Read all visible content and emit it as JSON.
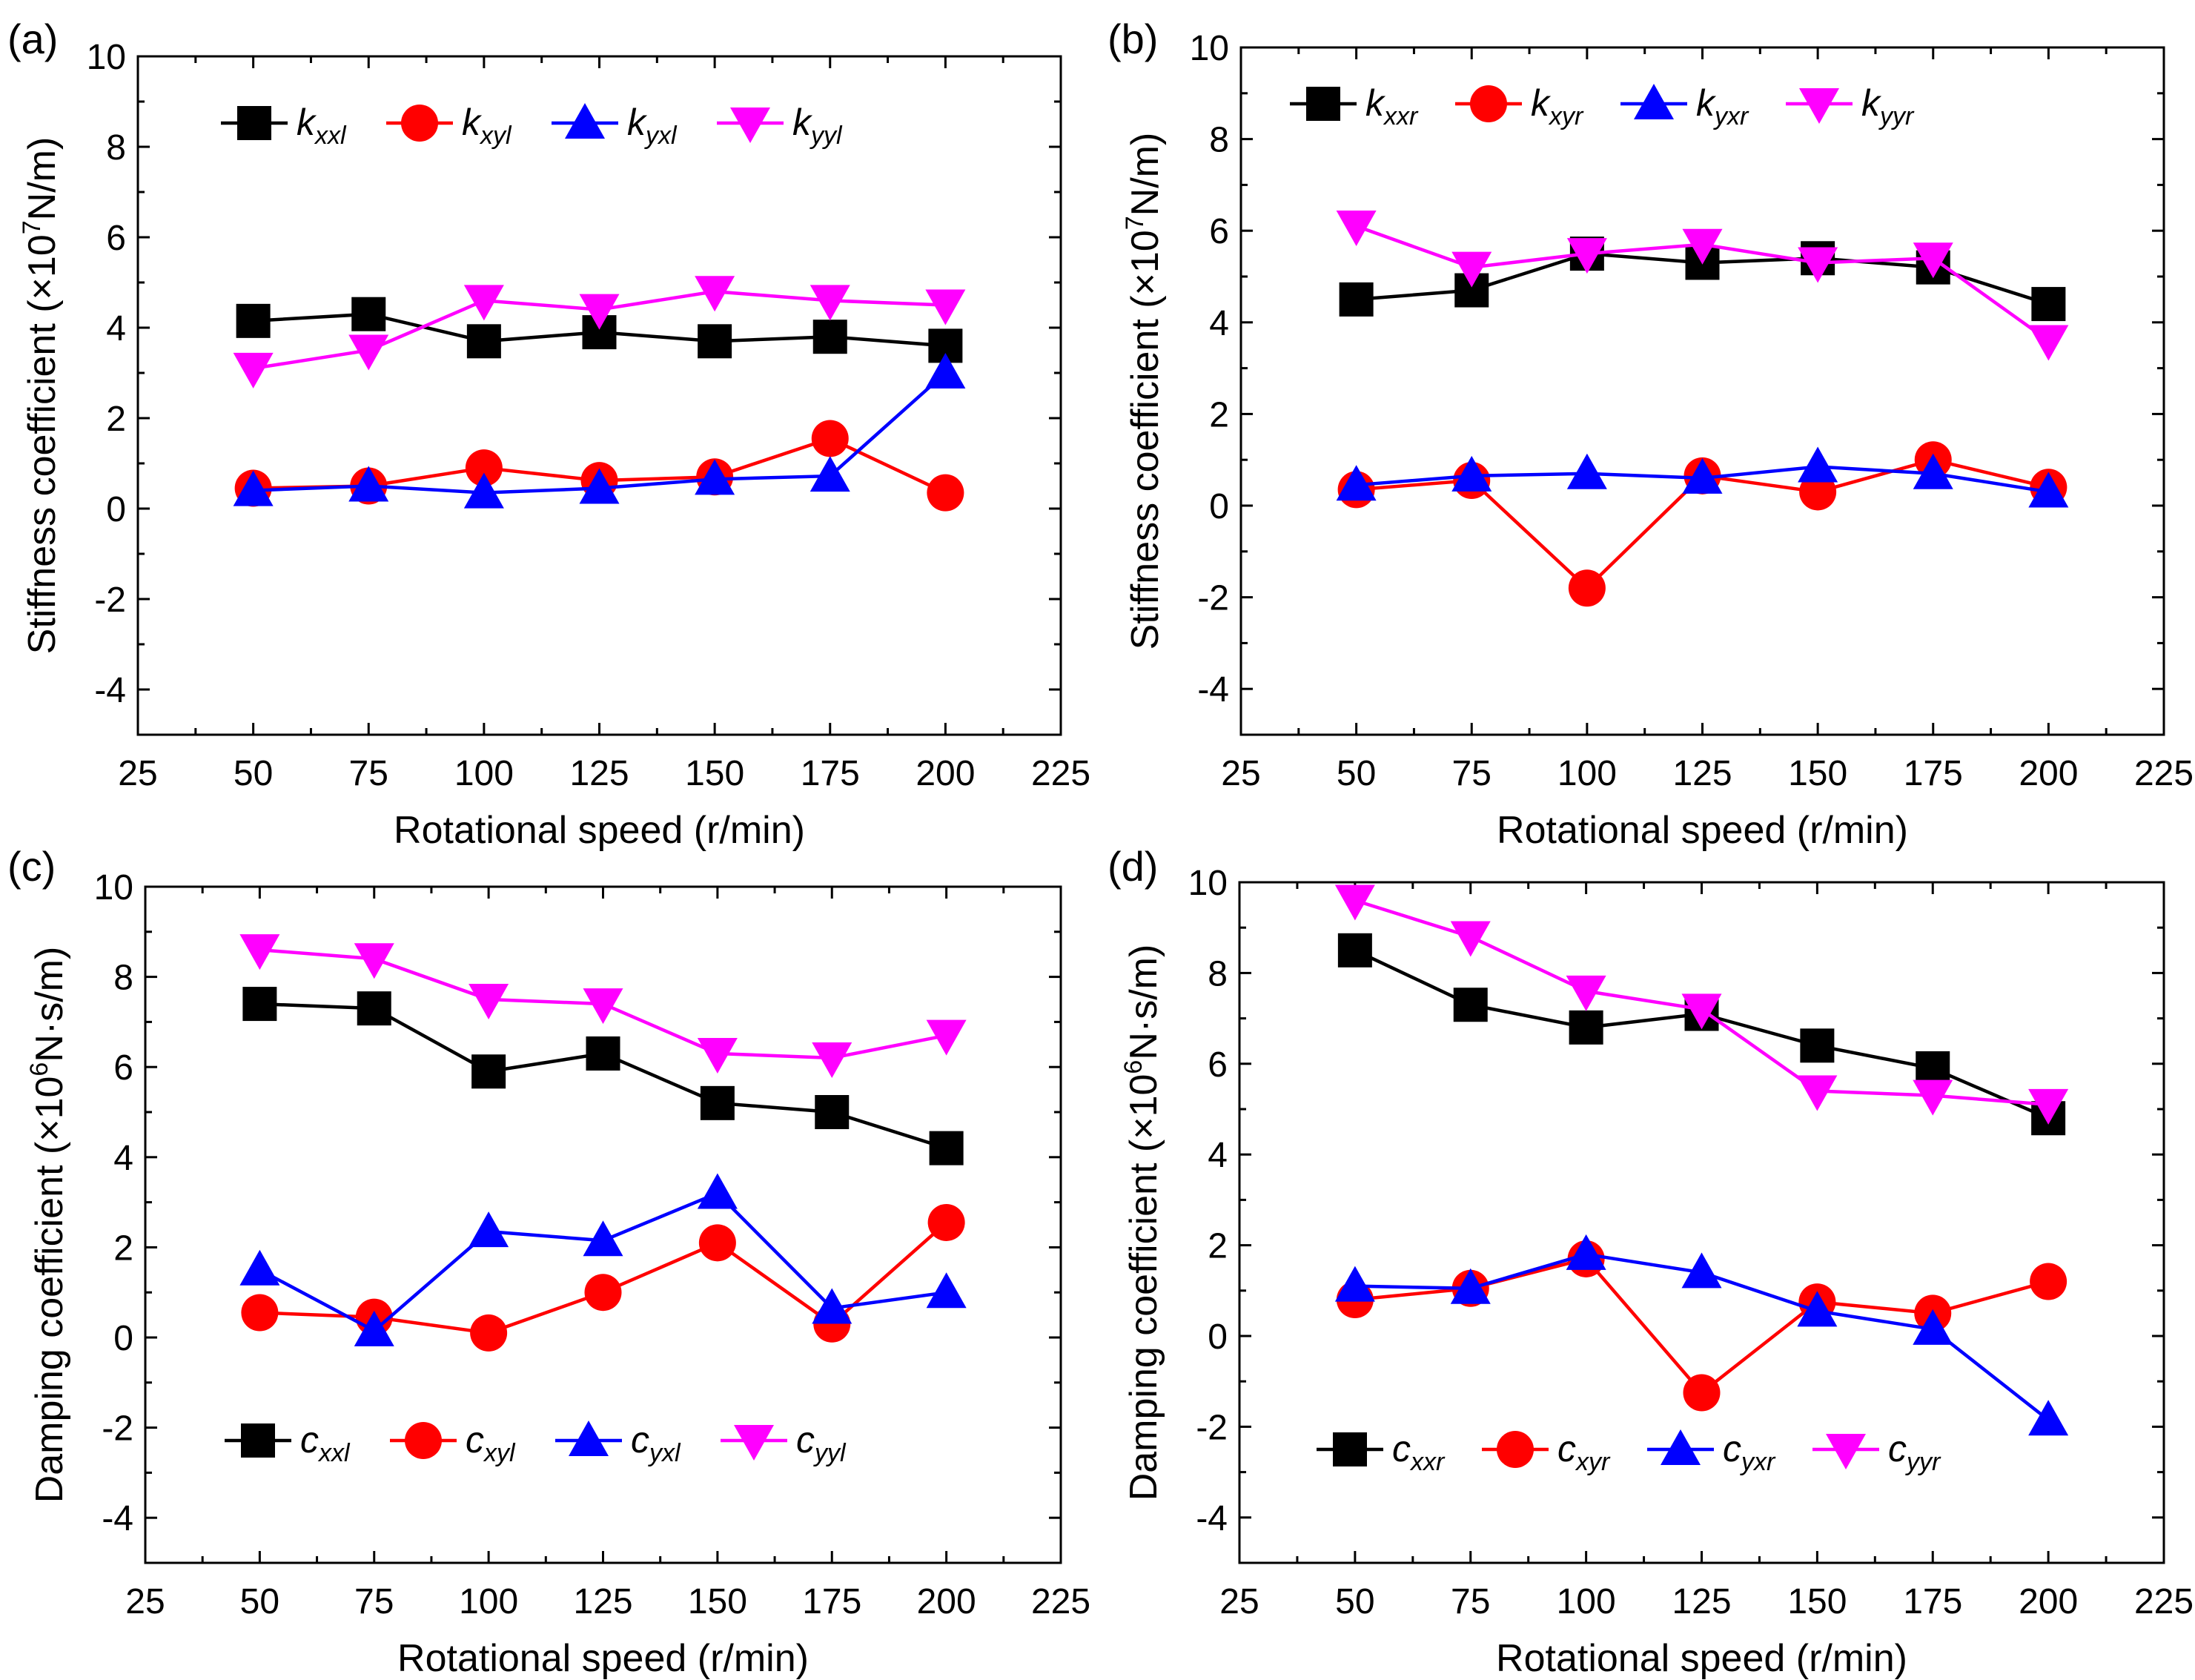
{
  "chart_data": [
    {
      "panel_label": "(a)",
      "type": "line",
      "xlabel": "Rotational speed (r/min)",
      "ylabel_main": "Stiffness coefficient (×10",
      "ylabel_sup": "7",
      "ylabel_tail": "N/m)",
      "xlim": [
        25,
        225
      ],
      "ylim": [
        -5,
        10
      ],
      "xticks": [
        "25",
        "50",
        "75",
        "100",
        "125",
        "150",
        "175",
        "200",
        "225"
      ],
      "yticks": [
        "-4",
        "-2",
        "0",
        "2",
        "4",
        "6",
        "8",
        "10"
      ],
      "legend_position": "top",
      "x": [
        50,
        75,
        100,
        125,
        150,
        175,
        200
      ],
      "series": [
        {
          "symbol": "k",
          "subscript": "xxl",
          "color": "#000000",
          "marker": "square",
          "values": [
            4.15,
            4.3,
            3.7,
            3.9,
            3.7,
            3.8,
            3.6
          ]
        },
        {
          "symbol": "k",
          "subscript": "xyl",
          "color": "#ff0000",
          "marker": "circle",
          "values": [
            0.45,
            0.5,
            0.9,
            0.62,
            0.7,
            1.55,
            0.35
          ]
        },
        {
          "symbol": "k",
          "subscript": "yxl",
          "color": "#0000ff",
          "marker": "triangle-up",
          "values": [
            0.4,
            0.5,
            0.35,
            0.45,
            0.65,
            0.72,
            3.0
          ]
        },
        {
          "symbol": "k",
          "subscript": "yyl",
          "color": "#ff00ff",
          "marker": "triangle-down",
          "values": [
            3.1,
            3.5,
            4.6,
            4.4,
            4.8,
            4.6,
            4.5
          ]
        }
      ]
    },
    {
      "panel_label": "(b)",
      "type": "line",
      "xlabel": "Rotational speed (r/min)",
      "ylabel_main": "Stiffness coefficient (×10",
      "ylabel_sup": "7",
      "ylabel_tail": "N/m)",
      "xlim": [
        25,
        225
      ],
      "ylim": [
        -5,
        10
      ],
      "xticks": [
        "25",
        "50",
        "75",
        "100",
        "125",
        "150",
        "175",
        "200",
        "225"
      ],
      "yticks": [
        "-4",
        "-2",
        "0",
        "2",
        "4",
        "6",
        "8",
        "10"
      ],
      "legend_position": "top",
      "x": [
        50,
        75,
        100,
        125,
        150,
        175,
        200
      ],
      "series": [
        {
          "symbol": "k",
          "subscript": "xxr",
          "color": "#000000",
          "marker": "square",
          "values": [
            4.5,
            4.7,
            5.5,
            5.3,
            5.4,
            5.2,
            4.4
          ]
        },
        {
          "symbol": "k",
          "subscript": "xyr",
          "color": "#ff0000",
          "marker": "circle",
          "values": [
            0.35,
            0.55,
            -1.8,
            0.65,
            0.3,
            1.0,
            0.4
          ]
        },
        {
          "symbol": "k",
          "subscript": "yxr",
          "color": "#0000ff",
          "marker": "triangle-up",
          "values": [
            0.45,
            0.65,
            0.7,
            0.6,
            0.85,
            0.7,
            0.3
          ]
        },
        {
          "symbol": "k",
          "subscript": "yyr",
          "color": "#ff00ff",
          "marker": "triangle-down",
          "values": [
            6.1,
            5.2,
            5.5,
            5.7,
            5.3,
            5.4,
            3.6
          ]
        }
      ]
    },
    {
      "panel_label": "(c)",
      "type": "line",
      "xlabel": "Rotational speed (r/min)",
      "ylabel_main": "Damping coefficient (×10",
      "ylabel_sup": "6",
      "ylabel_tail": "N·s/m)",
      "xlim": [
        25,
        225
      ],
      "ylim": [
        -5,
        10
      ],
      "xticks": [
        "25",
        "50",
        "75",
        "100",
        "125",
        "150",
        "175",
        "200",
        "225"
      ],
      "yticks": [
        "-4",
        "-2",
        "0",
        "2",
        "4",
        "6",
        "8",
        "10"
      ],
      "legend_position": "bottom",
      "x": [
        50,
        75,
        100,
        125,
        150,
        175,
        200
      ],
      "series": [
        {
          "symbol": "c",
          "subscript": "xxl",
          "color": "#000000",
          "marker": "square",
          "values": [
            7.4,
            7.3,
            5.9,
            6.3,
            5.2,
            5.0,
            4.2
          ]
        },
        {
          "symbol": "c",
          "subscript": "xyl",
          "color": "#ff0000",
          "marker": "circle",
          "values": [
            0.55,
            0.45,
            0.1,
            1.0,
            2.1,
            0.3,
            2.55
          ]
        },
        {
          "symbol": "c",
          "subscript": "yxl",
          "color": "#0000ff",
          "marker": "triangle-up",
          "values": [
            1.5,
            0.15,
            2.35,
            2.15,
            3.2,
            0.65,
            1.0
          ]
        },
        {
          "symbol": "c",
          "subscript": "yyl",
          "color": "#ff00ff",
          "marker": "triangle-down",
          "values": [
            8.6,
            8.4,
            7.5,
            7.4,
            6.3,
            6.2,
            6.7
          ]
        }
      ]
    },
    {
      "panel_label": "(d)",
      "type": "line",
      "xlabel": "Rotational speed (r/min)",
      "ylabel_main": "Damping coefficient (×10",
      "ylabel_sup": "6",
      "ylabel_tail": "N·s/m)",
      "xlim": [
        25,
        225
      ],
      "ylim": [
        -5,
        10
      ],
      "xticks": [
        "25",
        "50",
        "75",
        "100",
        "125",
        "150",
        "175",
        "200",
        "225"
      ],
      "yticks": [
        "-4",
        "-2",
        "0",
        "2",
        "4",
        "6",
        "8",
        "10"
      ],
      "legend_position": "bottom",
      "x": [
        50,
        75,
        100,
        125,
        150,
        175,
        200
      ],
      "series": [
        {
          "symbol": "c",
          "subscript": "xxr",
          "color": "#000000",
          "marker": "square",
          "values": [
            8.5,
            7.3,
            6.8,
            7.1,
            6.4,
            5.9,
            4.8
          ]
        },
        {
          "symbol": "c",
          "subscript": "xyr",
          "color": "#ff0000",
          "marker": "circle",
          "values": [
            0.8,
            1.05,
            1.7,
            -1.25,
            0.75,
            0.5,
            1.2
          ]
        },
        {
          "symbol": "c",
          "subscript": "yxr",
          "color": "#0000ff",
          "marker": "triangle-up",
          "values": [
            1.1,
            1.05,
            1.8,
            1.4,
            0.55,
            0.15,
            -1.85
          ]
        },
        {
          "symbol": "c",
          "subscript": "yyr",
          "color": "#ff00ff",
          "marker": "triangle-down",
          "values": [
            9.6,
            8.8,
            7.6,
            7.2,
            5.4,
            5.3,
            5.1
          ]
        }
      ]
    }
  ]
}
